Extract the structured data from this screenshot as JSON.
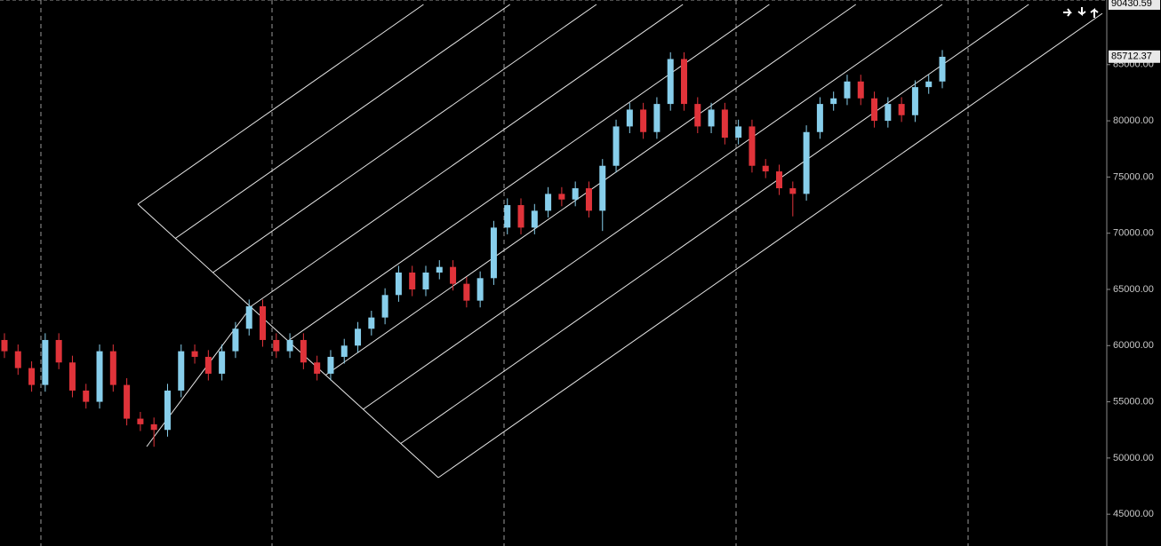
{
  "chart_data": {
    "type": "candlestick",
    "up_color": "#87ceeb",
    "down_color": "#e0333a",
    "open": [
      60500,
      59500,
      58000,
      56500,
      60500,
      58500,
      56000,
      55000,
      59500,
      56500,
      53500,
      53000,
      52500,
      56000,
      59500,
      59000,
      57500,
      59500,
      61500,
      63500,
      60500,
      59500,
      60500,
      58500,
      57500,
      59000,
      60000,
      61500,
      62500,
      64500,
      66500,
      65000,
      66500,
      67000,
      65500,
      64000,
      66000,
      70500,
      72500,
      70500,
      72000,
      73500,
      73000,
      74000,
      72000,
      76000,
      79500,
      81000,
      79000,
      81500,
      85500,
      81500,
      79500,
      81000,
      78500,
      79500,
      76000,
      75500,
      74000,
      73500,
      79000,
      81500,
      82000,
      83500,
      82000,
      80000,
      81500,
      80500,
      83000,
      83500
    ],
    "high": [
      61100,
      60100,
      58600,
      61100,
      61100,
      59100,
      56600,
      60100,
      60100,
      57100,
      54100,
      53600,
      56600,
      60100,
      60100,
      59600,
      60100,
      62100,
      64100,
      64100,
      61100,
      61100,
      61100,
      59100,
      59600,
      60600,
      62100,
      63100,
      65100,
      67100,
      67100,
      67100,
      67600,
      67600,
      66100,
      66600,
      71100,
      73100,
      73100,
      72600,
      74100,
      74100,
      74600,
      74600,
      76600,
      80100,
      81600,
      81600,
      82100,
      86100,
      86100,
      82100,
      81600,
      81600,
      80100,
      80100,
      76600,
      76100,
      74600,
      79600,
      82100,
      82600,
      84100,
      84100,
      82600,
      82100,
      82100,
      83600,
      84100,
      86300
    ],
    "low": [
      58900,
      57400,
      55900,
      55900,
      57900,
      55400,
      54400,
      54400,
      55900,
      52900,
      52400,
      51000,
      51900,
      55400,
      58400,
      56900,
      56900,
      58900,
      60900,
      59900,
      58900,
      58900,
      57900,
      56900,
      56900,
      58400,
      59400,
      60900,
      61900,
      63900,
      64400,
      64400,
      65900,
      64900,
      63400,
      63400,
      65400,
      69900,
      69900,
      69900,
      71400,
      72400,
      72400,
      71400,
      70200,
      75400,
      78900,
      78400,
      78400,
      80900,
      80900,
      78900,
      78900,
      77900,
      77900,
      75400,
      74900,
      73400,
      71500,
      72900,
      78400,
      80900,
      81400,
      81400,
      79400,
      79400,
      79900,
      79900,
      82400,
      82900
    ],
    "close": [
      59500,
      58000,
      56500,
      60500,
      58500,
      56000,
      55000,
      59500,
      56500,
      53500,
      53000,
      52500,
      56000,
      59500,
      59000,
      57500,
      59500,
      61500,
      63500,
      60500,
      59500,
      60500,
      58500,
      57500,
      59000,
      60000,
      61500,
      62500,
      64500,
      66500,
      65000,
      66500,
      67000,
      65500,
      64000,
      66000,
      70500,
      72500,
      70500,
      72000,
      73500,
      73000,
      74000,
      72000,
      76000,
      79500,
      81000,
      79000,
      81500,
      85500,
      81500,
      79500,
      81000,
      78500,
      79500,
      76000,
      75500,
      74000,
      73500,
      79000,
      81500,
      82000,
      83500,
      82000,
      80000,
      81500,
      80500,
      83000,
      83500,
      85700
    ],
    "ylim": [
      42170,
      90750
    ],
    "yticks": [
      {
        "value": 45000,
        "label": "45000.00"
      },
      {
        "value": 50000,
        "label": "50000.00"
      },
      {
        "value": 55000,
        "label": "55000.00"
      },
      {
        "value": 60000,
        "label": "60000.00"
      },
      {
        "value": 65000,
        "label": "65000.00"
      },
      {
        "value": 70000,
        "label": "70000.00"
      },
      {
        "value": 75000,
        "label": "75000.00"
      },
      {
        "value": 80000,
        "label": "80000.00"
      },
      {
        "value": 85000,
        "label": "85000.00"
      }
    ],
    "price_labels": [
      {
        "value": 90430.59,
        "label": "90430.59"
      },
      {
        "value": 85712.37,
        "label": "85712.37"
      }
    ]
  }
}
